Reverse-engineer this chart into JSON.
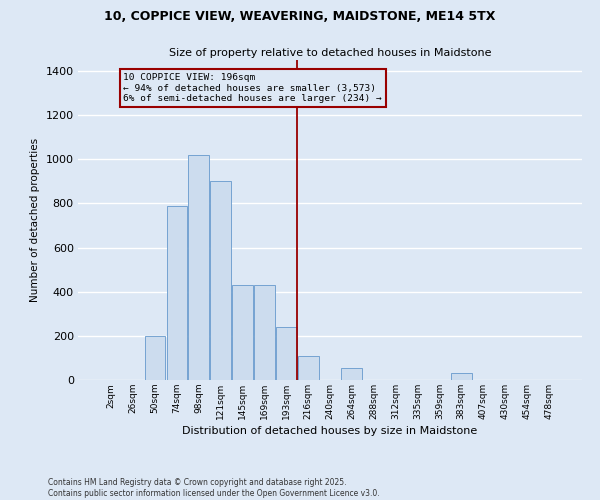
{
  "title": "10, COPPICE VIEW, WEAVERING, MAIDSTONE, ME14 5TX",
  "subtitle": "Size of property relative to detached houses in Maidstone",
  "xlabel": "Distribution of detached houses by size in Maidstone",
  "ylabel": "Number of detached properties",
  "footer_line1": "Contains HM Land Registry data © Crown copyright and database right 2025.",
  "footer_line2": "Contains public sector information licensed under the Open Government Licence v3.0.",
  "categories": [
    "2sqm",
    "26sqm",
    "50sqm",
    "74sqm",
    "98sqm",
    "121sqm",
    "145sqm",
    "169sqm",
    "193sqm",
    "216sqm",
    "240sqm",
    "264sqm",
    "288sqm",
    "312sqm",
    "335sqm",
    "359sqm",
    "383sqm",
    "407sqm",
    "430sqm",
    "454sqm",
    "478sqm"
  ],
  "bar_values": [
    0,
    0,
    200,
    790,
    1020,
    900,
    430,
    430,
    240,
    110,
    0,
    55,
    0,
    0,
    0,
    0,
    30,
    0,
    0,
    0,
    0
  ],
  "bar_color": "#ccdcee",
  "bar_edge_color": "#6699cc",
  "ylim_max": 1450,
  "yticks": [
    0,
    200,
    400,
    600,
    800,
    1000,
    1200,
    1400
  ],
  "vline_index": 8.48,
  "annotation_line1": "10 COPPICE VIEW: 196sqm",
  "annotation_line2": "← 94% of detached houses are smaller (3,573)",
  "annotation_line3": "6% of semi-detached houses are larger (234) →",
  "vline_color": "#990000",
  "box_edge_color": "#990000",
  "bg_color": "#dde8f5",
  "grid_color": "#ffffff"
}
